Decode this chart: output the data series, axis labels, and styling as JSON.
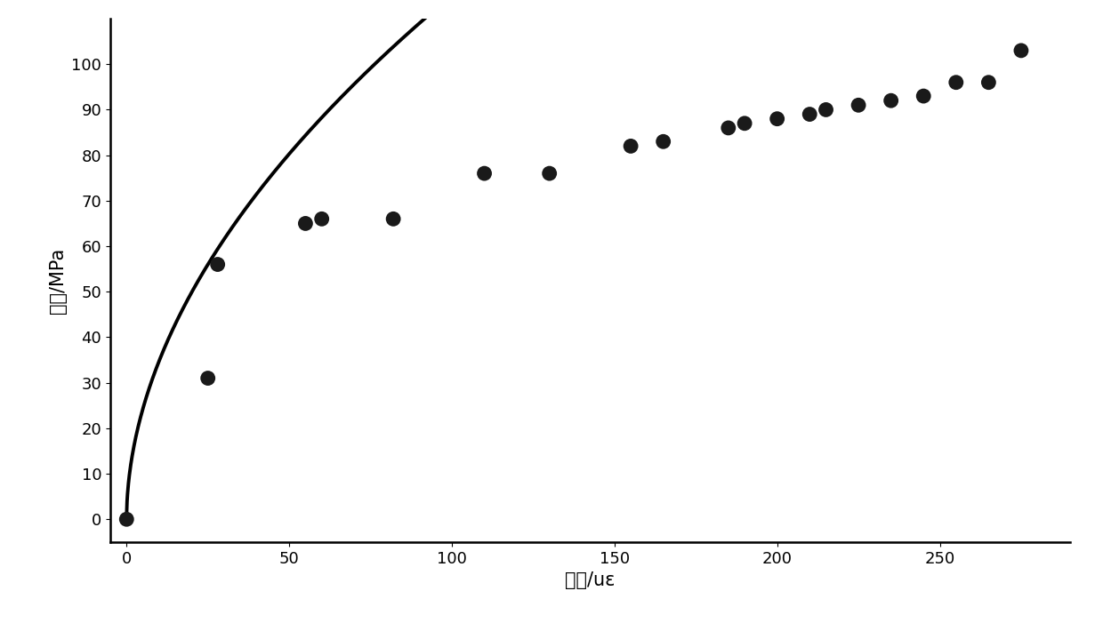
{
  "scatter_x": [
    0,
    25,
    28,
    55,
    60,
    82,
    110,
    130,
    155,
    165,
    185,
    190,
    200,
    210,
    215,
    225,
    235,
    245,
    255,
    265,
    275
  ],
  "scatter_y": [
    0,
    31,
    56,
    65,
    66,
    66,
    76,
    76,
    82,
    83,
    86,
    87,
    88,
    89,
    90,
    91,
    92,
    93,
    96,
    96,
    103
  ],
  "curve_params": {
    "a": 10.5,
    "b": 0.52
  },
  "xlim": [
    -5,
    290
  ],
  "ylim": [
    -5,
    110
  ],
  "xticks": [
    0,
    50,
    100,
    150,
    200,
    250
  ],
  "yticks": [
    0,
    10,
    20,
    30,
    40,
    50,
    60,
    70,
    80,
    90,
    100
  ],
  "xlabel": "应变/uε",
  "ylabel": "压力/MPa",
  "line_color": "#000000",
  "scatter_color": "#1a1a1a",
  "background_color": "#ffffff",
  "line_width": 2.8,
  "marker_size": 7,
  "tick_fontsize": 13,
  "label_fontsize": 15
}
